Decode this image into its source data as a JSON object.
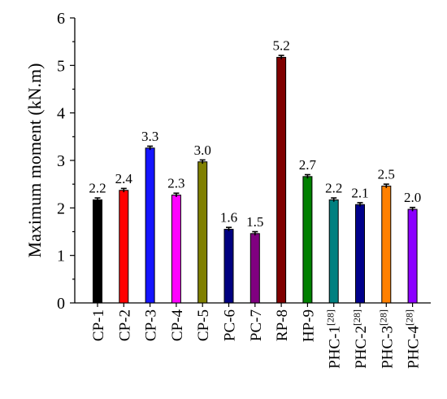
{
  "chart_data": {
    "type": "bar",
    "ylabel": "Maximum moment (kN.m)",
    "ylim": [
      0,
      6
    ],
    "yticks": [
      0,
      1,
      2,
      3,
      4,
      5,
      6
    ],
    "grid": false,
    "categories": [
      {
        "label": "CP-1",
        "ref": ""
      },
      {
        "label": "CP-2",
        "ref": ""
      },
      {
        "label": "CP-3",
        "ref": ""
      },
      {
        "label": "CP-4",
        "ref": ""
      },
      {
        "label": "CP-5",
        "ref": ""
      },
      {
        "label": "PC-6",
        "ref": ""
      },
      {
        "label": "PC-7",
        "ref": ""
      },
      {
        "label": "RP-8",
        "ref": ""
      },
      {
        "label": "HP-9",
        "ref": ""
      },
      {
        "label": "PHC-1",
        "ref": "[28]"
      },
      {
        "label": "PHC-2",
        "ref": "[28]"
      },
      {
        "label": "PHC-3",
        "ref": "[28]"
      },
      {
        "label": "PHC-4",
        "ref": "[28]"
      }
    ],
    "values": [
      2.17,
      2.37,
      3.26,
      2.27,
      2.97,
      1.55,
      1.46,
      5.17,
      2.66,
      2.17,
      2.07,
      2.46,
      1.97
    ],
    "data_labels": [
      "2.2",
      "2.4",
      "3.3",
      "2.3",
      "3.0",
      "1.6",
      "1.5",
      "5.2",
      "2.7",
      "2.2",
      "2.1",
      "2.5",
      "2.0"
    ],
    "error": [
      0.04,
      0.04,
      0.04,
      0.04,
      0.04,
      0.04,
      0.04,
      0.04,
      0.04,
      0.04,
      0.04,
      0.04,
      0.04
    ],
    "colors": [
      "#000000",
      "#ff0000",
      "#1515ff",
      "#ff00ff",
      "#808000",
      "#000080",
      "#800080",
      "#800000",
      "#008000",
      "#008080",
      "#00008b",
      "#ff8000",
      "#8b00ff"
    ]
  }
}
